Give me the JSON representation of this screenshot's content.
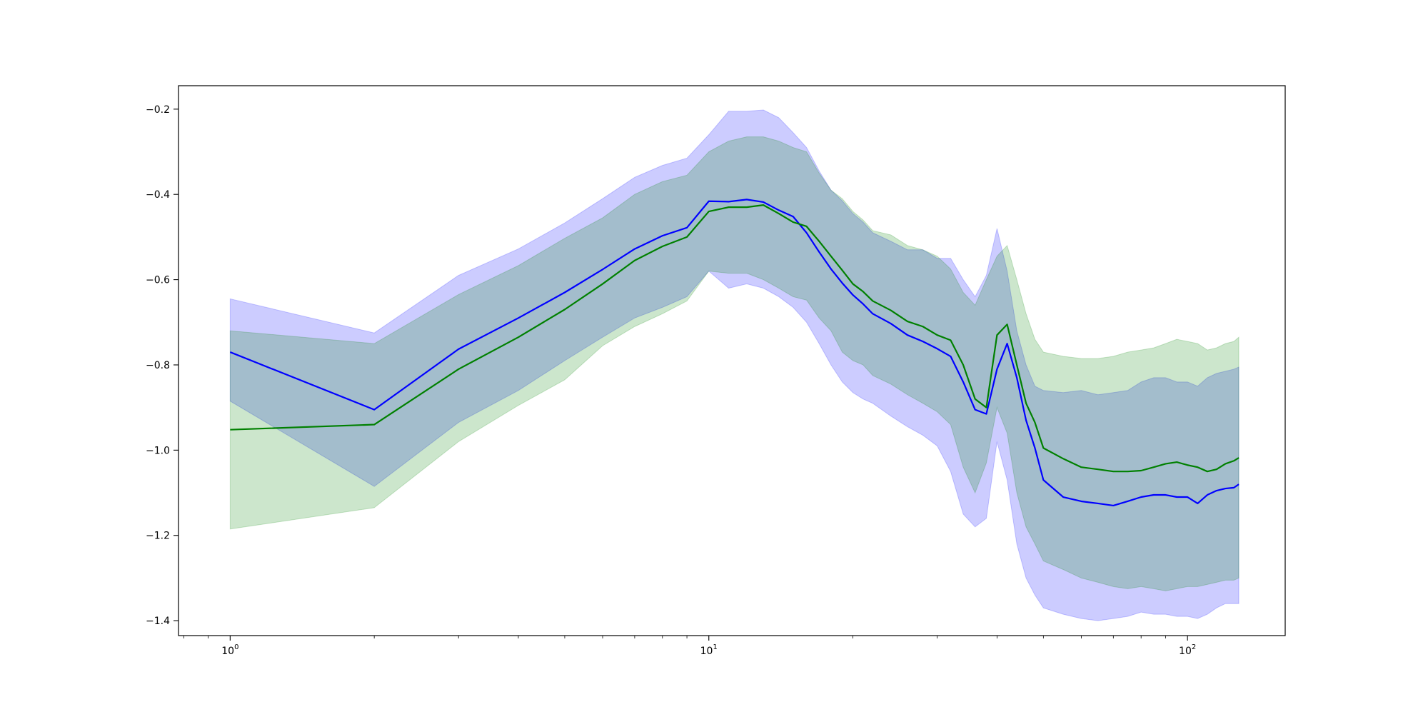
{
  "chart_data": {
    "type": "line",
    "title": "",
    "xlabel": "",
    "ylabel": "",
    "x_scale": "log",
    "xlim": [
      0.78,
      160
    ],
    "ylim": [
      -1.435,
      -0.145
    ],
    "grid": false,
    "x_ticks": [
      {
        "value": 1,
        "base": "10",
        "exp": "0"
      },
      {
        "value": 10,
        "base": "10",
        "exp": "1"
      },
      {
        "value": 100,
        "base": "10",
        "exp": "2"
      }
    ],
    "y_ticks": [
      -1.4,
      -1.2,
      -1.0,
      -0.8,
      -0.6,
      -0.4,
      -0.2
    ],
    "y_tick_labels": [
      "−1.4",
      "−1.2",
      "−1.0",
      "−0.8",
      "−0.6",
      "−0.4",
      "−0.2"
    ],
    "colors": {
      "blue_line": "#0000ff",
      "blue_band": "#0000ff",
      "green_line": "#008000",
      "green_band": "#008000"
    },
    "band_opacity": 0.2,
    "x": [
      1,
      2,
      3,
      4,
      5,
      6,
      7,
      8,
      9,
      10,
      11,
      12,
      13,
      14,
      15,
      16,
      17,
      18,
      19,
      20,
      21,
      22,
      24,
      26,
      28,
      30,
      32,
      34,
      36,
      38,
      40,
      42,
      44,
      46,
      48,
      50,
      55,
      60,
      65,
      70,
      75,
      80,
      85,
      90,
      95,
      100,
      105,
      110,
      115,
      120,
      125,
      128
    ],
    "series": [
      {
        "color": "blue",
        "mean": [
          -0.77,
          -0.905,
          -0.763,
          -0.69,
          -0.63,
          -0.576,
          -0.528,
          -0.497,
          -0.478,
          -0.416,
          -0.417,
          -0.412,
          -0.418,
          -0.437,
          -0.452,
          -0.49,
          -0.535,
          -0.575,
          -0.608,
          -0.636,
          -0.657,
          -0.68,
          -0.703,
          -0.73,
          -0.745,
          -0.762,
          -0.78,
          -0.84,
          -0.905,
          -0.915,
          -0.81,
          -0.75,
          -0.83,
          -0.93,
          -0.995,
          -1.07,
          -1.11,
          -1.12,
          -1.125,
          -1.13,
          -1.12,
          -1.11,
          -1.105,
          -1.105,
          -1.11,
          -1.11,
          -1.125,
          -1.105,
          -1.095,
          -1.09,
          -1.088,
          -1.08
        ],
        "upper": [
          -0.645,
          -0.725,
          -0.59,
          -0.528,
          -0.467,
          -0.41,
          -0.36,
          -0.332,
          -0.315,
          -0.26,
          -0.205,
          -0.205,
          -0.202,
          -0.22,
          -0.255,
          -0.29,
          -0.345,
          -0.39,
          -0.415,
          -0.445,
          -0.465,
          -0.49,
          -0.51,
          -0.53,
          -0.53,
          -0.55,
          -0.55,
          -0.6,
          -0.64,
          -0.59,
          -0.48,
          -0.58,
          -0.72,
          -0.8,
          -0.85,
          -0.86,
          -0.865,
          -0.86,
          -0.87,
          -0.865,
          -0.86,
          -0.84,
          -0.83,
          -0.83,
          -0.84,
          -0.84,
          -0.85,
          -0.83,
          -0.82,
          -0.815,
          -0.81,
          -0.805
        ],
        "lower": [
          -0.885,
          -1.085,
          -0.935,
          -0.86,
          -0.79,
          -0.735,
          -0.69,
          -0.665,
          -0.64,
          -0.58,
          -0.62,
          -0.61,
          -0.62,
          -0.64,
          -0.665,
          -0.7,
          -0.75,
          -0.8,
          -0.84,
          -0.865,
          -0.88,
          -0.89,
          -0.92,
          -0.945,
          -0.965,
          -0.99,
          -1.05,
          -1.15,
          -1.18,
          -1.16,
          -0.98,
          -1.07,
          -1.22,
          -1.3,
          -1.34,
          -1.37,
          -1.385,
          -1.395,
          -1.4,
          -1.395,
          -1.39,
          -1.38,
          -1.385,
          -1.385,
          -1.39,
          -1.39,
          -1.395,
          -1.385,
          -1.37,
          -1.36,
          -1.36,
          -1.36
        ]
      },
      {
        "color": "green",
        "mean": [
          -0.952,
          -0.94,
          -0.81,
          -0.735,
          -0.67,
          -0.61,
          -0.555,
          -0.522,
          -0.5,
          -0.44,
          -0.43,
          -0.43,
          -0.425,
          -0.445,
          -0.465,
          -0.475,
          -0.51,
          -0.545,
          -0.578,
          -0.61,
          -0.628,
          -0.65,
          -0.672,
          -0.698,
          -0.71,
          -0.73,
          -0.742,
          -0.8,
          -0.88,
          -0.9,
          -0.73,
          -0.705,
          -0.8,
          -0.89,
          -0.935,
          -0.995,
          -1.02,
          -1.04,
          -1.045,
          -1.05,
          -1.05,
          -1.048,
          -1.04,
          -1.032,
          -1.028,
          -1.035,
          -1.04,
          -1.05,
          -1.045,
          -1.032,
          -1.025,
          -1.018
        ],
        "upper": [
          -0.72,
          -0.75,
          -0.635,
          -0.567,
          -0.503,
          -0.455,
          -0.4,
          -0.37,
          -0.355,
          -0.3,
          -0.275,
          -0.265,
          -0.265,
          -0.275,
          -0.29,
          -0.3,
          -0.35,
          -0.39,
          -0.41,
          -0.44,
          -0.46,
          -0.485,
          -0.495,
          -0.52,
          -0.53,
          -0.545,
          -0.575,
          -0.63,
          -0.66,
          -0.6,
          -0.545,
          -0.52,
          -0.6,
          -0.68,
          -0.74,
          -0.77,
          -0.78,
          -0.785,
          -0.785,
          -0.78,
          -0.77,
          -0.765,
          -0.76,
          -0.75,
          -0.74,
          -0.745,
          -0.75,
          -0.765,
          -0.76,
          -0.75,
          -0.745,
          -0.735
        ],
        "lower": [
          -1.185,
          -1.135,
          -0.98,
          -0.895,
          -0.835,
          -0.755,
          -0.71,
          -0.68,
          -0.65,
          -0.58,
          -0.585,
          -0.585,
          -0.6,
          -0.62,
          -0.64,
          -0.648,
          -0.69,
          -0.72,
          -0.77,
          -0.79,
          -0.8,
          -0.825,
          -0.845,
          -0.87,
          -0.89,
          -0.91,
          -0.94,
          -1.04,
          -1.1,
          -1.03,
          -0.9,
          -0.96,
          -1.1,
          -1.18,
          -1.22,
          -1.26,
          -1.28,
          -1.3,
          -1.31,
          -1.32,
          -1.325,
          -1.32,
          -1.325,
          -1.33,
          -1.325,
          -1.32,
          -1.32,
          -1.315,
          -1.31,
          -1.305,
          -1.305,
          -1.3
        ]
      }
    ]
  }
}
